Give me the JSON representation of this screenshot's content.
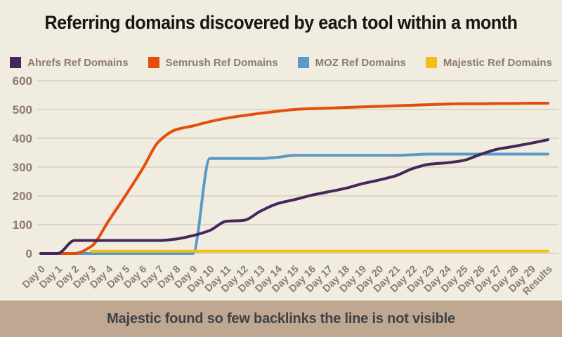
{
  "title": "Referring domains discovered by each tool within a month",
  "banner": {
    "text": "Majestic found so few backlinks the line is not visible"
  },
  "colors": {
    "background": "#f0ecdf",
    "gridline": "#dcd6c8",
    "axis_text": "#8d7b6d",
    "title_text": "#161616",
    "banner_background": "#bfa792",
    "banner_text": "#3d4247",
    "ahrefs": "#46275c",
    "semrush": "#e54d0d",
    "moz": "#5b9ac6",
    "majestic": "#f2bf16"
  },
  "chart_data": {
    "type": "line",
    "title": "Referring domains discovered by each tool within a month",
    "xlabel": "",
    "ylabel": "",
    "ylim": [
      0,
      600
    ],
    "ytick_step": 100,
    "grid": "horizontal",
    "legend_position": "top",
    "smoothing": "monotone",
    "categories": [
      "Day 0",
      "Day 1",
      "Day 2",
      "Day 3",
      "Day 4",
      "Day 5",
      "Day 6",
      "Day 7",
      "Day 8",
      "Day 9",
      "Day 10",
      "Day 11",
      "Day 12",
      "Day 13",
      "Day 14",
      "Day 15",
      "Day 16",
      "Day 17",
      "Day 18",
      "Day 19",
      "Day 20",
      "Day 21",
      "Day 22",
      "Day 23",
      "Day 24",
      "Day 25",
      "Day 26",
      "Day 27",
      "Day 28",
      "Day 29",
      "Results"
    ],
    "series": [
      {
        "name": "Ahrefs Ref Domains",
        "color": "#46275c",
        "values": [
          0,
          0,
          45,
          45,
          45,
          45,
          45,
          45,
          50,
          62,
          80,
          112,
          115,
          147,
          173,
          187,
          202,
          214,
          226,
          242,
          255,
          270,
          295,
          310,
          315,
          323,
          344,
          362,
          372,
          383,
          395
        ]
      },
      {
        "name": "Semrush Ref Domains",
        "color": "#e54d0d",
        "values": [
          0,
          0,
          0,
          25,
          112,
          200,
          292,
          390,
          430,
          443,
          458,
          470,
          479,
          487,
          494,
          500,
          503,
          505,
          507,
          509,
          511,
          513,
          515,
          517,
          519,
          520,
          520,
          521,
          521,
          522,
          522
        ]
      },
      {
        "name": "MOZ Ref Domains",
        "color": "#5b9ac6",
        "values": [
          0,
          0,
          0,
          0,
          0,
          0,
          0,
          0,
          0,
          0,
          330,
          330,
          330,
          330,
          334,
          341,
          341,
          341,
          341,
          341,
          341,
          341,
          343,
          345,
          345,
          345,
          345,
          345,
          345,
          345,
          345
        ]
      },
      {
        "name": "Majestic Ref Domains",
        "color": "#f2bf16",
        "values": [
          null,
          null,
          null,
          8,
          8,
          8,
          8,
          8,
          8,
          8,
          8,
          8,
          8,
          8,
          8,
          8,
          8,
          8,
          8,
          8,
          8,
          8,
          8,
          8,
          8,
          8,
          8,
          8,
          8,
          8,
          8
        ]
      }
    ]
  }
}
